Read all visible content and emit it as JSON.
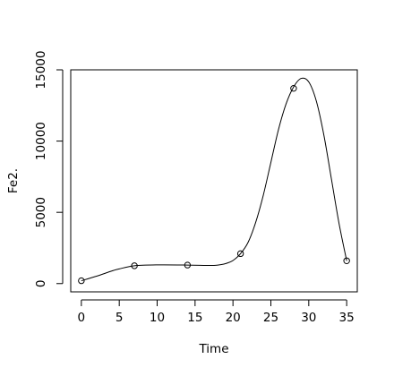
{
  "chart_data": {
    "type": "scatter",
    "xlabel": "Time",
    "ylabel": "Fe2.",
    "xlim": [
      -1.4,
      36.4
    ],
    "ylim": [
      -580,
      15000
    ],
    "x_ticks": [
      0,
      5,
      10,
      15,
      20,
      25,
      30,
      35
    ],
    "y_ticks": [
      0,
      5000,
      10000,
      15000
    ],
    "x_tick_labels": [
      "0",
      "5",
      "10",
      "15",
      "20",
      "25",
      "30",
      "35"
    ],
    "y_tick_labels": [
      "0",
      "5000",
      "10000",
      "15000"
    ],
    "grid": false,
    "series": [
      {
        "kind": "points",
        "marker": "open-circle",
        "x": [
          0,
          7,
          14,
          21,
          28,
          35
        ],
        "y": [
          200,
          1250,
          1300,
          2100,
          13700,
          1600
        ]
      },
      {
        "kind": "smooth-curve",
        "x": [
          0,
          2,
          4,
          5,
          7,
          10,
          14,
          17,
          18,
          19,
          20,
          21,
          22,
          23,
          24,
          25,
          26,
          27,
          28,
          29,
          30,
          31,
          32,
          33,
          34,
          35
        ],
        "y": [
          200,
          520,
          880,
          1030,
          1250,
          1310,
          1300,
          1270,
          1300,
          1400,
          1620,
          2100,
          2900,
          4300,
          6200,
          8500,
          10800,
          12600,
          13800,
          14400,
          14150,
          12800,
          10400,
          7300,
          4200,
          1600
        ]
      }
    ]
  }
}
